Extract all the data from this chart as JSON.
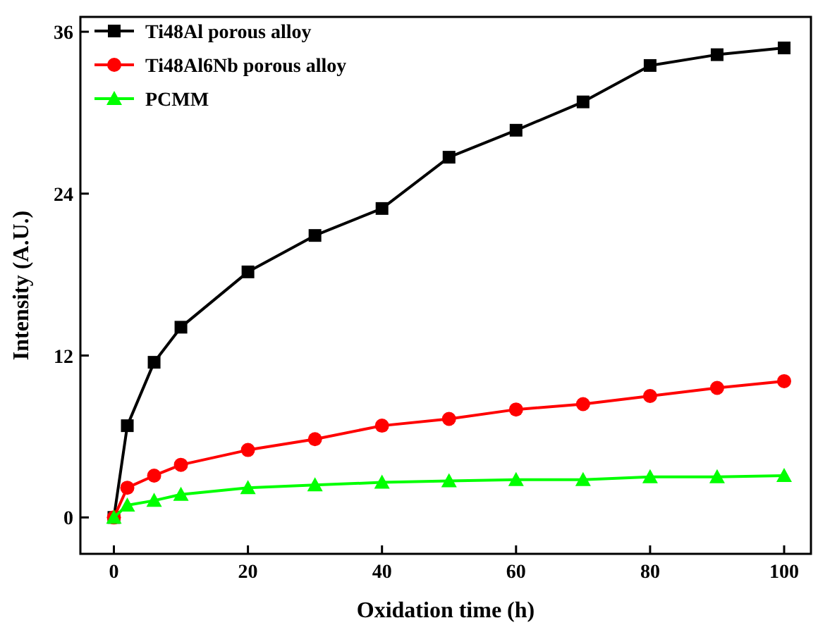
{
  "chart_data": {
    "type": "line",
    "xlabel": "Oxidation time (h)",
    "ylabel": "Intensity (A.U.)",
    "x": [
      0,
      2,
      6,
      10,
      20,
      30,
      40,
      50,
      60,
      70,
      80,
      90,
      100
    ],
    "series": [
      {
        "name": "Ti48Al porous alloy",
        "color": "#000000",
        "marker": "square",
        "values": [
          0,
          6.8,
          11.5,
          14.1,
          18.2,
          20.9,
          22.9,
          26.7,
          28.7,
          30.8,
          33.5,
          34.3,
          34.8
        ]
      },
      {
        "name": "Ti48Al6Nb porous alloy",
        "color": "#ff0000",
        "marker": "circle",
        "values": [
          0,
          2.2,
          3.1,
          3.9,
          5.0,
          5.8,
          6.8,
          7.3,
          8.0,
          8.4,
          9.0,
          9.6,
          10.1
        ]
      },
      {
        "name": "PCMM",
        "color": "#00ff00",
        "marker": "triangle",
        "values": [
          0,
          0.9,
          1.25,
          1.7,
          2.2,
          2.4,
          2.6,
          2.7,
          2.8,
          2.8,
          3.0,
          3.0,
          3.1
        ]
      }
    ],
    "xlim": [
      -5,
      104
    ],
    "xticks": [
      0,
      20,
      40,
      60,
      80,
      100
    ],
    "ylim": [
      -2.7,
      37.1
    ],
    "yticks": [
      0,
      12,
      24,
      36
    ],
    "grid": false,
    "legend": "top left",
    "line_style": "solid"
  }
}
